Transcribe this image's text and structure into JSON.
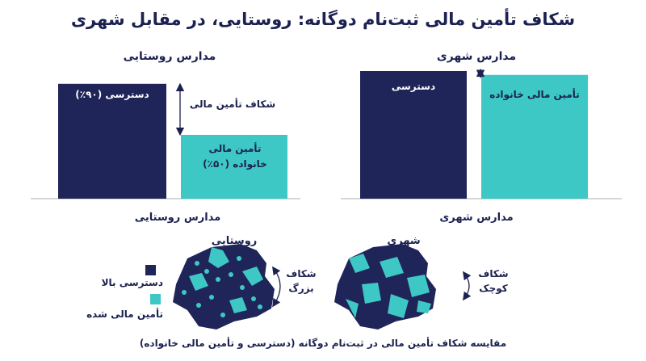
{
  "title": "شکاف تأمین مالی ثبت‌نام دوگانه: روستایی، در مقابل شهری",
  "colors": {
    "navy": "#1f2559",
    "teal": "#3ec8c5",
    "text": "#1b2150",
    "axis": "#c8c8c8"
  },
  "chart_data": [
    {
      "type": "bar",
      "title": "مدارس روستایی",
      "xlabel": "مدارس روستایی",
      "series": [
        {
          "name": "دسترسی (۹۰٪)",
          "value": 90,
          "label": "دسترسی (۹۰٪)"
        },
        {
          "name": "تأمین مالی خانواده",
          "value": 50,
          "label": "تأمین مالی خانواده (۵۰٪)"
        }
      ],
      "gap_annotation": "شکاف تأمین مالی",
      "ylim": [
        0,
        100
      ]
    },
    {
      "type": "bar",
      "title": "مدارس شهری",
      "xlabel": "مدارس شهری",
      "series": [
        {
          "name": "دسترسی",
          "value": 100,
          "label": "دسترسی"
        },
        {
          "name": "تأمین مالی خانواده",
          "value": 97,
          "label": "تأمین مالی خانواده"
        }
      ],
      "ylim": [
        0,
        100
      ]
    }
  ],
  "maps": {
    "rural": {
      "title": "روستایی",
      "gap_label": "شکاف بزرگ"
    },
    "urban": {
      "title": "شهری",
      "gap_label": "شکاف کوچک"
    }
  },
  "legend": [
    {
      "label": "دسترسی بالا",
      "color": "#1f2559"
    },
    {
      "label": "تأمین مالی شده",
      "color": "#3ec8c5"
    }
  ],
  "caption": "مقایسه شکاف تأمین مالی در ثبت‌نام دوگانه (دسترسی و تأمین مالی خانواده)"
}
